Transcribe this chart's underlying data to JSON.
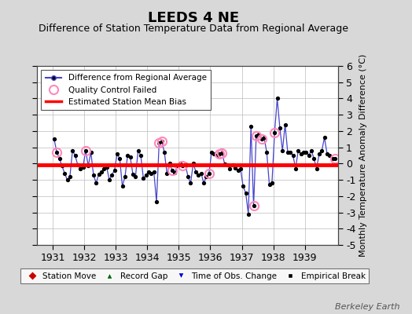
{
  "title": "LEEDS 4 NE",
  "subtitle": "Difference of Station Temperature Data from Regional Average",
  "ylabel_right": "Monthly Temperature Anomaly Difference (°C)",
  "xlim": [
    1930.5,
    1940.05
  ],
  "ylim": [
    -5,
    6
  ],
  "yticks": [
    -5,
    -4,
    -3,
    -2,
    -1,
    0,
    1,
    2,
    3,
    4,
    5,
    6
  ],
  "xticks": [
    1931,
    1932,
    1933,
    1934,
    1935,
    1936,
    1937,
    1938,
    1939
  ],
  "bias_line": -0.07,
  "bias_color": "#ff0000",
  "line_color": "#4444cc",
  "marker_color": "#000000",
  "qc_color": "#ff88bb",
  "background_color": "#d8d8d8",
  "plot_bg_color": "#ffffff",
  "watermark": "Berkeley Earth",
  "title_fontsize": 13,
  "subtitle_fontsize": 9,
  "data_x": [
    1931.042,
    1931.125,
    1931.208,
    1931.292,
    1931.375,
    1931.458,
    1931.542,
    1931.625,
    1931.708,
    1931.792,
    1931.875,
    1931.958,
    1932.042,
    1932.125,
    1932.208,
    1932.292,
    1932.375,
    1932.458,
    1932.542,
    1932.625,
    1932.708,
    1932.792,
    1932.875,
    1932.958,
    1933.042,
    1933.125,
    1933.208,
    1933.292,
    1933.375,
    1933.458,
    1933.542,
    1933.625,
    1933.708,
    1933.792,
    1933.875,
    1933.958,
    1934.042,
    1934.125,
    1934.208,
    1934.292,
    1934.375,
    1934.458,
    1934.542,
    1934.625,
    1934.708,
    1934.792,
    1934.875,
    1934.958,
    1935.042,
    1935.125,
    1935.208,
    1935.292,
    1935.375,
    1935.458,
    1935.542,
    1935.625,
    1935.708,
    1935.792,
    1935.875,
    1935.958,
    1936.042,
    1936.125,
    1936.208,
    1936.292,
    1936.375,
    1936.458,
    1936.542,
    1936.625,
    1936.708,
    1936.792,
    1936.875,
    1936.958,
    1937.042,
    1937.125,
    1937.208,
    1937.292,
    1937.375,
    1937.458,
    1937.542,
    1937.625,
    1937.708,
    1937.792,
    1937.875,
    1937.958,
    1938.042,
    1938.125,
    1938.208,
    1938.292,
    1938.375,
    1938.458,
    1938.542,
    1938.625,
    1938.708,
    1938.792,
    1938.875,
    1938.958,
    1939.042,
    1939.125,
    1939.208,
    1939.292,
    1939.375,
    1939.458,
    1939.542,
    1939.625,
    1939.708,
    1939.792,
    1939.875,
    1939.958
  ],
  "data_y": [
    1.5,
    0.7,
    0.3,
    -0.15,
    -0.6,
    -1.0,
    -0.8,
    0.8,
    0.5,
    -0.1,
    -0.3,
    -0.2,
    0.8,
    -0.15,
    0.7,
    -0.7,
    -1.2,
    -0.65,
    -0.5,
    -0.3,
    -0.2,
    -1.0,
    -0.7,
    -0.4,
    0.6,
    0.3,
    -1.4,
    -0.8,
    0.5,
    0.4,
    -0.65,
    -0.8,
    0.8,
    0.5,
    -0.9,
    -0.7,
    -0.5,
    -0.6,
    -0.5,
    -2.35,
    1.25,
    1.35,
    0.7,
    -0.6,
    0.0,
    -0.4,
    -0.55,
    -0.15,
    0.0,
    -0.15,
    -0.05,
    -0.8,
    -1.2,
    0.0,
    -0.5,
    -0.7,
    -0.6,
    -1.2,
    -0.8,
    -0.6,
    0.7,
    0.6,
    0.5,
    0.6,
    0.65,
    -0.05,
    -0.1,
    -0.3,
    -0.1,
    -0.25,
    -0.4,
    -0.3,
    -1.4,
    -1.8,
    -3.1,
    2.3,
    -2.6,
    1.7,
    1.8,
    1.5,
    1.6,
    0.7,
    -1.3,
    -1.2,
    1.9,
    4.0,
    2.2,
    0.8,
    2.4,
    0.7,
    0.7,
    0.5,
    -0.3,
    0.8,
    0.6,
    0.7,
    0.7,
    0.5,
    0.8,
    0.3,
    -0.3,
    0.6,
    0.8,
    1.6,
    0.6,
    0.5,
    0.3,
    0.3
  ],
  "qc_x": [
    1931.125,
    1932.042,
    1934.375,
    1934.458,
    1934.792,
    1935.125,
    1935.958,
    1936.292,
    1936.375,
    1937.375,
    1937.458,
    1937.625,
    1938.042,
    1939.958
  ],
  "qc_y": [
    0.7,
    0.8,
    1.25,
    1.35,
    -0.4,
    -0.15,
    -0.6,
    0.6,
    0.65,
    -2.6,
    1.7,
    1.5,
    1.9,
    0.3
  ]
}
